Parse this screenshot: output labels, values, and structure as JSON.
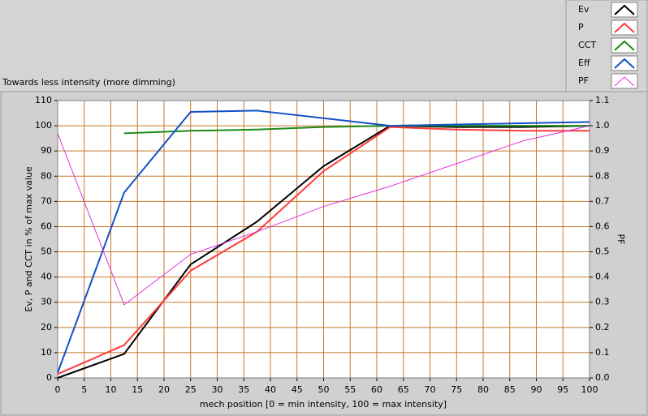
{
  "chart_data": {
    "type": "line",
    "title": "Towards less intensity (more dimming)",
    "xlabel": "mech position [0 = min intensity, 100 = max intensity]",
    "ylabel": "Ev, P and CCT in % of max value",
    "y2label": "PF",
    "x": [
      0,
      12.5,
      25,
      37.5,
      50,
      62.5,
      75,
      87.5,
      100
    ],
    "series": [
      {
        "name": "Ev",
        "color": "#000000",
        "values": [
          0,
          9.5,
          45,
          62,
          84,
          100,
          99.5,
          99.5,
          100
        ]
      },
      {
        "name": "P",
        "color": "#ff3c3c",
        "values": [
          1.5,
          13,
          42.5,
          58,
          82,
          99.5,
          98.5,
          98,
          98
        ]
      },
      {
        "name": "CCT",
        "color": "#1a8c1a",
        "values": [
          null,
          97,
          98,
          98.5,
          99.5,
          100,
          100,
          100,
          100
        ]
      },
      {
        "name": "Eff",
        "color": "#1450c8",
        "values": [
          2,
          73.5,
          105.5,
          106,
          103,
          100,
          100.5,
          101,
          101.5
        ]
      },
      {
        "name": "PF",
        "color": "#e030e0",
        "axis": "y2",
        "values": [
          0.97,
          0.29,
          0.49,
          0.58,
          0.68,
          0.76,
          0.85,
          0.94,
          1.0
        ]
      }
    ],
    "xlim": [
      0,
      100
    ],
    "xticks": [
      0,
      5,
      10,
      15,
      20,
      25,
      30,
      35,
      40,
      45,
      50,
      55,
      60,
      65,
      70,
      75,
      80,
      85,
      90,
      95,
      100
    ],
    "ylim": [
      0,
      110
    ],
    "yticks": [
      0,
      10,
      20,
      30,
      40,
      50,
      60,
      70,
      80,
      90,
      100,
      110
    ],
    "y2lim": [
      0,
      1.1
    ],
    "y2ticks": [
      {
        "value": 0,
        "label": "0.0"
      },
      0.1,
      0.2,
      0.3,
      0.4,
      0.5,
      0.6,
      0.7,
      0.8,
      0.9,
      {
        "value": 1,
        "label": "1.0"
      },
      1.1
    ],
    "grid": true,
    "legend": "top-right"
  }
}
